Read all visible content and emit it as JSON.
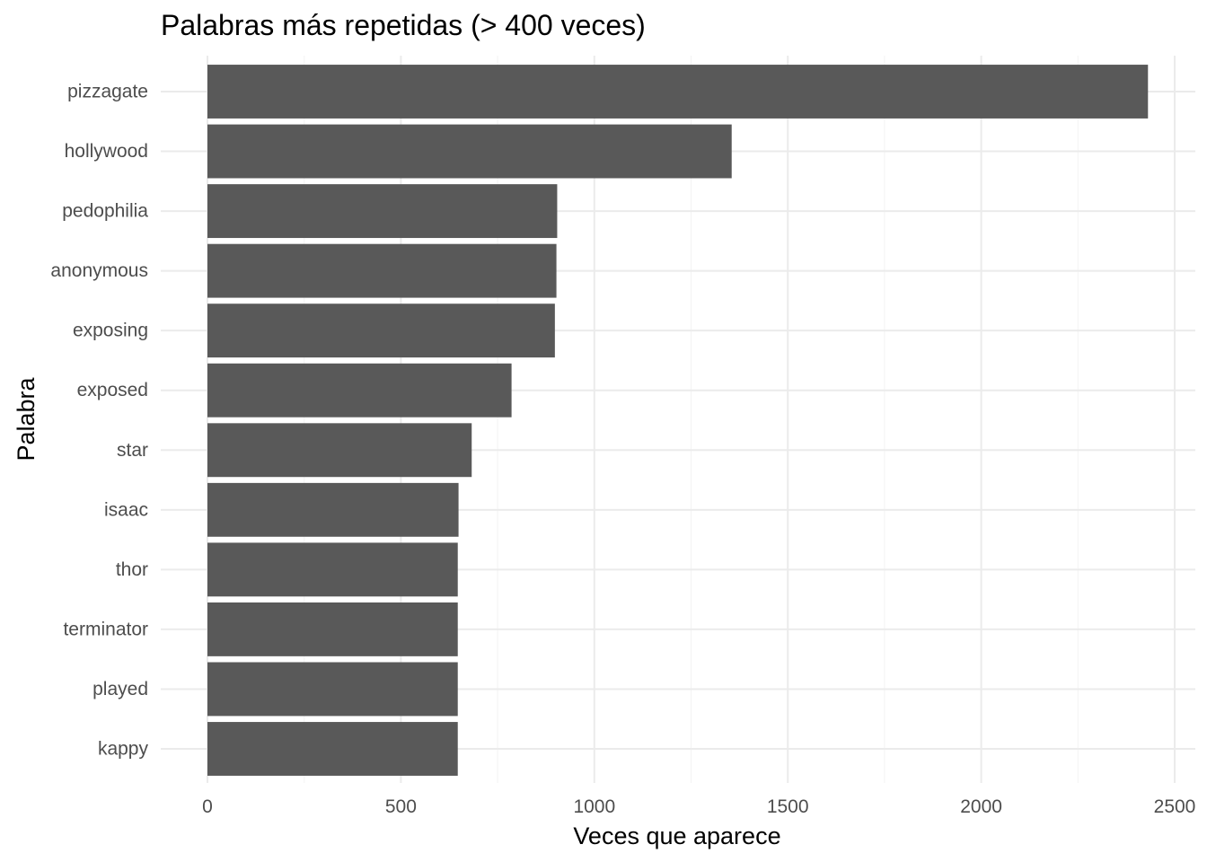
{
  "chart_data": {
    "type": "bar",
    "orientation": "horizontal",
    "title": "Palabras más repetidas (> 400 veces)",
    "xlabel": "Veces que aparece",
    "ylabel": "Palabra",
    "categories": [
      "pizzagate",
      "hollywood",
      "pedophilia",
      "anonymous",
      "exposing",
      "exposed",
      "star",
      "isaac",
      "thor",
      "terminator",
      "played",
      "kappy"
    ],
    "values": [
      2431,
      1355,
      904,
      902,
      898,
      786,
      683,
      649,
      647,
      647,
      647,
      647
    ],
    "xlim": [
      0,
      2500
    ],
    "xticks": [
      0,
      500,
      1000,
      1500,
      2000,
      2500
    ],
    "xtick_labels": [
      "0",
      "500",
      "1000",
      "1500",
      "2000",
      "2500"
    ],
    "grid": true,
    "legend": "none",
    "colors": {
      "bar": "#595959",
      "grid_major": "#ebebeb",
      "grid_minor": "#f3f3f3",
      "tick_text": "#4d4d4d"
    }
  }
}
